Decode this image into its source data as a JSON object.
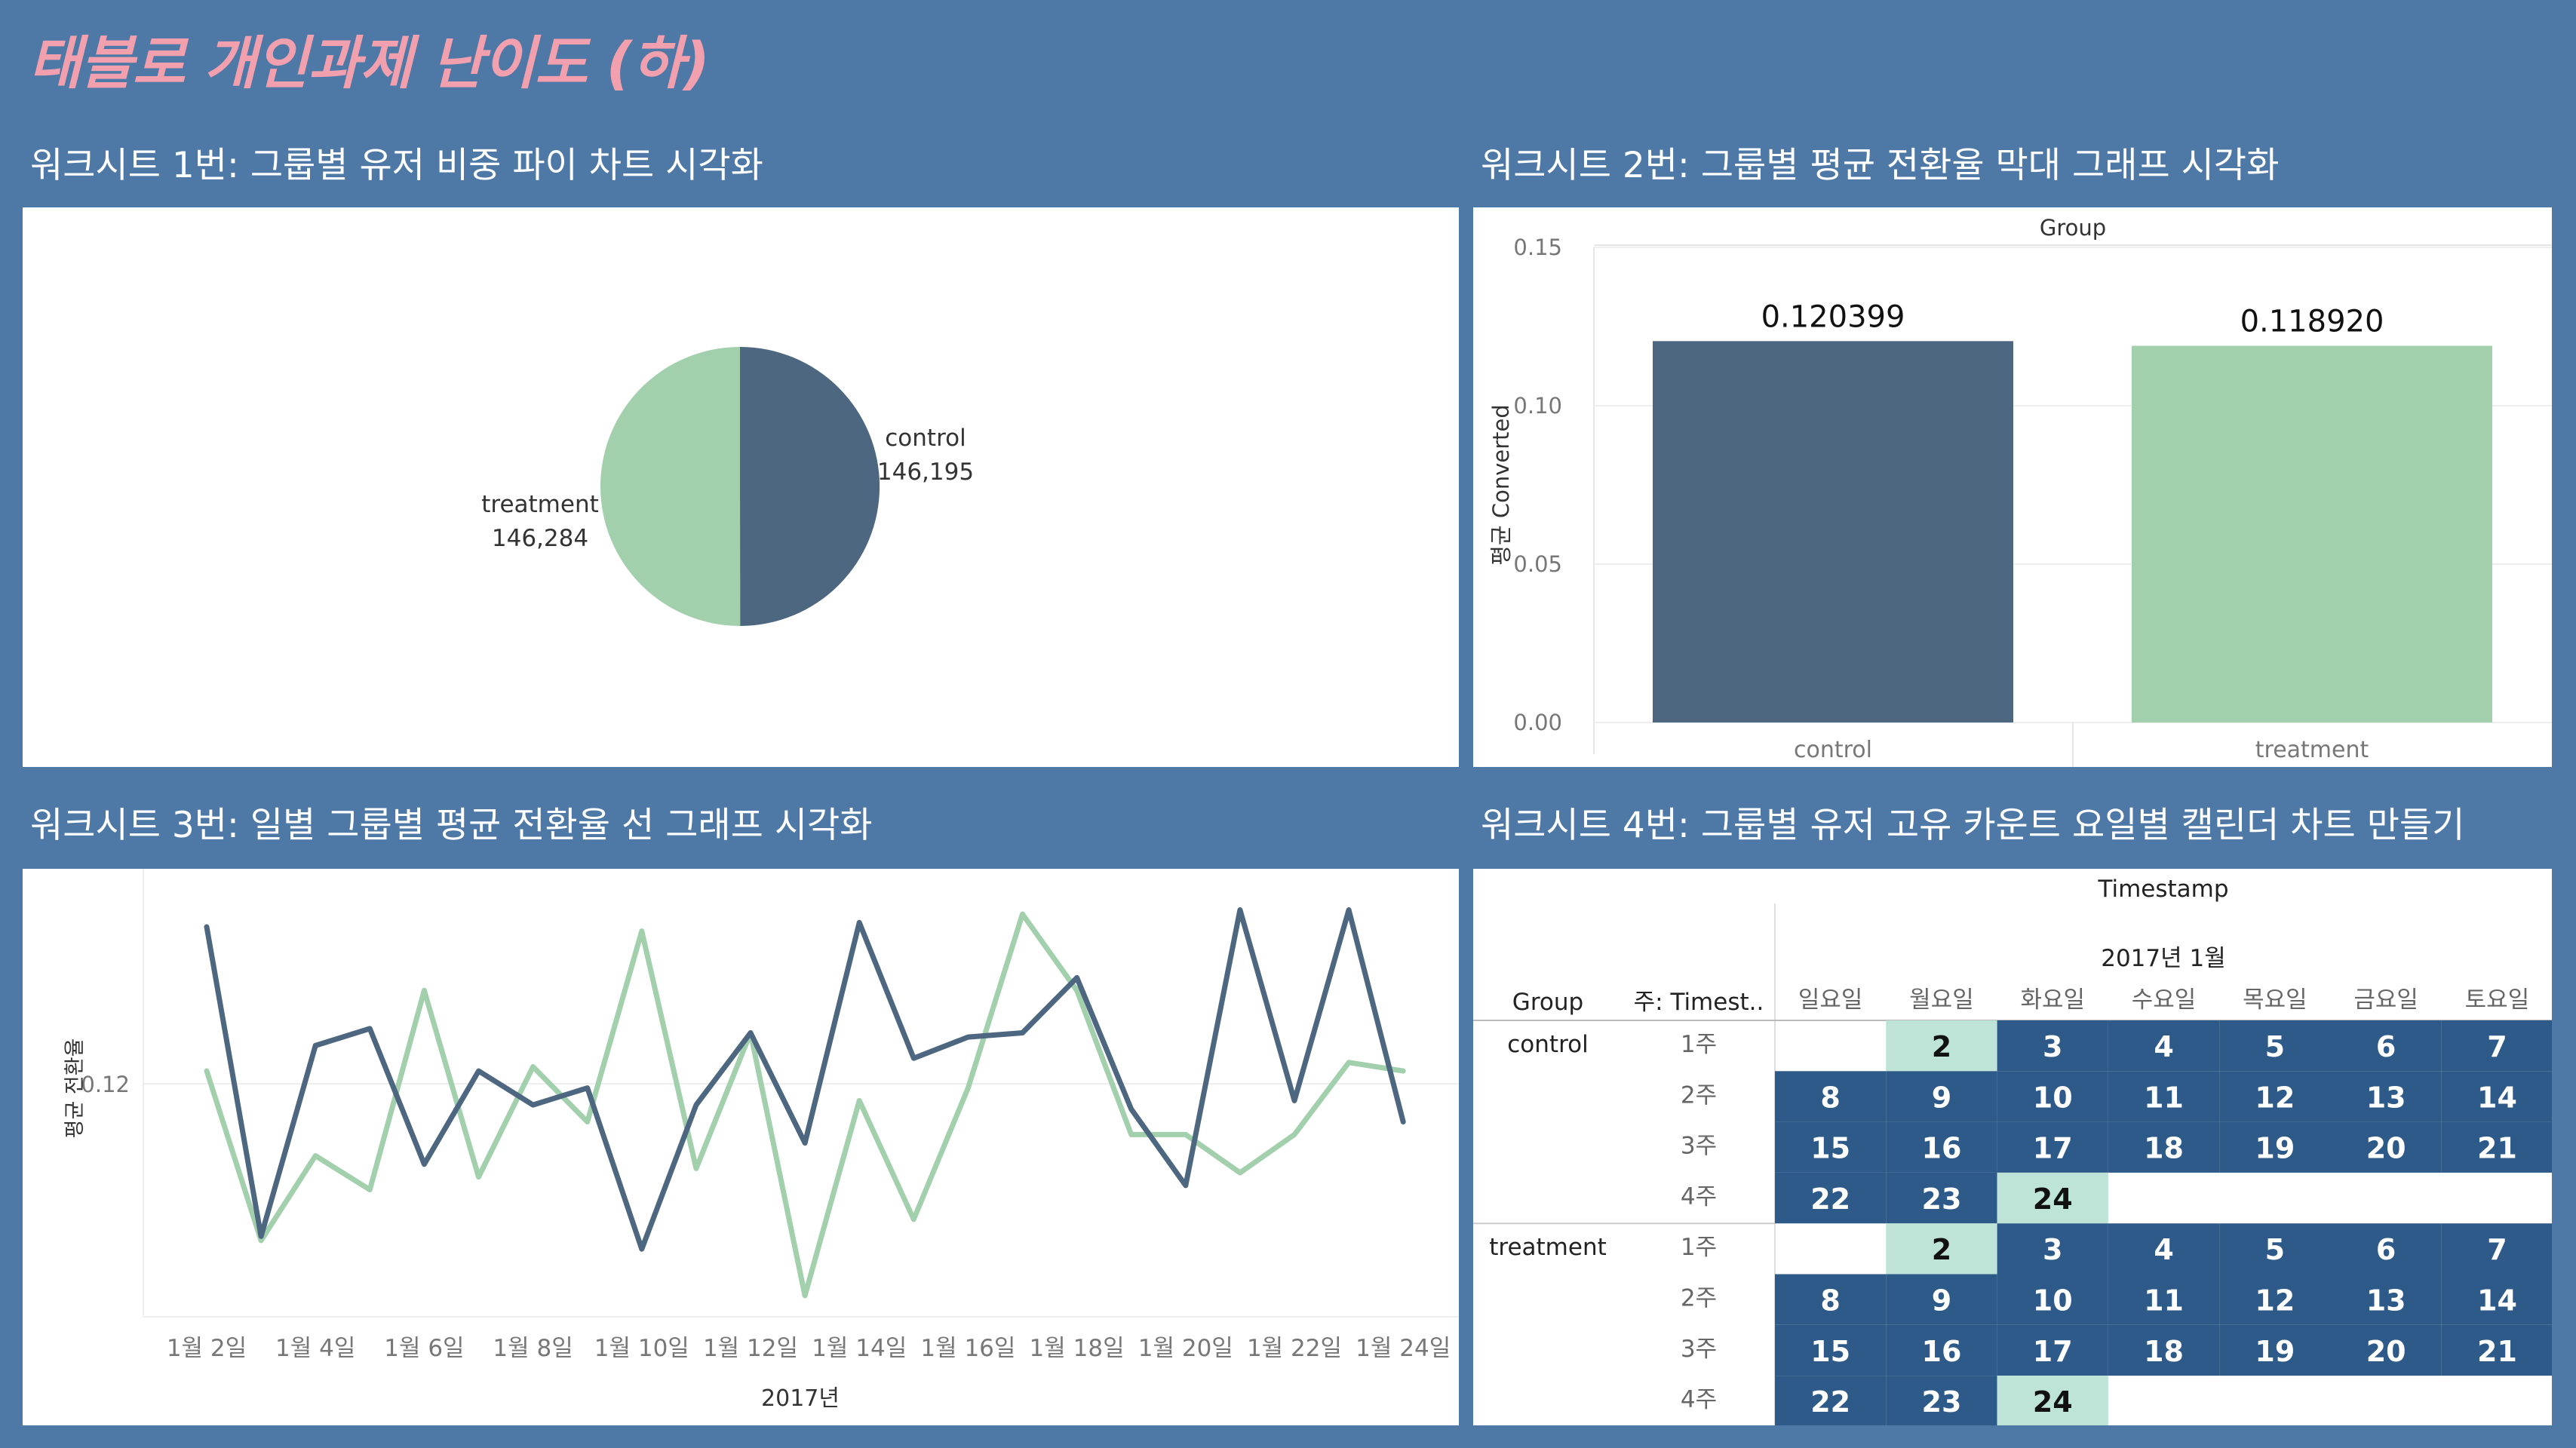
{
  "dashboard": {
    "title": "태블로 개인과제 난이도 (하)",
    "ws1_title": "워크시트 1번: 그룹별 유저 비중 파이 차트 시각화",
    "ws2_title": "워크시트 2번: 그룹별 평균 전환율 막대 그래프 시각화",
    "ws3_title": "워크시트 3번: 일별 그룹별 평균 전환율 선 그래프 시각화",
    "ws4_title": "워크시트 4번: 그룹별 유저 고유 카운트 요일별 캘린더 차트 만들기"
  },
  "colors": {
    "background": "#4e78a6",
    "title_pink": "#f3a0ae",
    "control": "#4e6781",
    "treatment": "#a2cfac",
    "calendar_dark": "#2d5a88",
    "calendar_light": "#bde4d6"
  },
  "chart_data": [
    {
      "type": "pie",
      "slices": [
        {
          "name": "control",
          "label": "146,195",
          "value": 146195
        },
        {
          "name": "treatment",
          "label": "146,284",
          "value": 146284
        }
      ]
    },
    {
      "type": "bar",
      "header": "Group",
      "categories": [
        "control",
        "treatment"
      ],
      "values": [
        0.120399,
        0.11892
      ],
      "value_labels": [
        "0.120399",
        "0.118920"
      ],
      "ylabel": "평균 Converted",
      "ylim": [
        0,
        0.15
      ],
      "yticks": [
        "0.00",
        "0.05",
        "0.10",
        "0.15"
      ]
    },
    {
      "type": "line",
      "xlabel": "2017년",
      "ylabel": "평균 전환율",
      "x_ticks": [
        "1월 2일",
        "1월 4일",
        "1월 6일",
        "1월 8일",
        "1월 10일",
        "1월 12일",
        "1월 14일",
        "1월 16일",
        "1월 18일",
        "1월 20일",
        "1월 22일",
        "1월 24일"
      ],
      "y_tick": "0.12",
      "x": [
        "1월 2일",
        "1월 3일",
        "1월 4일",
        "1월 5일",
        "1월 6일",
        "1월 7일",
        "1월 8일",
        "1월 9일",
        "1월 10일",
        "1월 11일",
        "1월 12일",
        "1월 13일",
        "1월 14일",
        "1월 15일",
        "1월 16일",
        "1월 17일",
        "1월 18일",
        "1월 19일",
        "1월 20일",
        "1월 21일",
        "1월 22일",
        "1월 23일",
        "1月 24일"
      ],
      "series": [
        {
          "name": "control",
          "values": [
            0.1237,
            0.1164,
            0.1209,
            0.1213,
            0.1181,
            0.1203,
            0.1195,
            0.1199,
            0.1161,
            0.1195,
            0.1212,
            0.1186,
            0.1238,
            0.1206,
            0.1211,
            0.1212,
            0.1225,
            0.1194,
            0.1176,
            0.1241,
            0.1196,
            0.1241,
            0.1191
          ]
        },
        {
          "name": "treatment",
          "values": [
            0.1203,
            0.1163,
            0.1183,
            0.1175,
            0.1222,
            0.1178,
            0.1204,
            0.1191,
            0.1236,
            0.118,
            0.1212,
            0.115,
            0.1196,
            0.1168,
            0.1199,
            0.124,
            0.1222,
            0.1188,
            0.1188,
            0.1179,
            0.1188,
            0.1205,
            0.1203
          ]
        }
      ]
    },
    {
      "type": "table",
      "header": "Timestamp",
      "month": "2017년 1월",
      "col_group": "Group",
      "col_week": "주: Timest..",
      "weekdays": [
        "일요일",
        "월요일",
        "화요일",
        "수요일",
        "목요일",
        "금요일",
        "토요일"
      ],
      "groups": [
        {
          "name": "control",
          "weeks": [
            {
              "label": "1주",
              "days": [
                "",
                "2",
                "3",
                "4",
                "5",
                "6",
                "7"
              ]
            },
            {
              "label": "2주",
              "days": [
                "8",
                "9",
                "10",
                "11",
                "12",
                "13",
                "14"
              ]
            },
            {
              "label": "3주",
              "days": [
                "15",
                "16",
                "17",
                "18",
                "19",
                "20",
                "21"
              ]
            },
            {
              "label": "4주",
              "days": [
                "22",
                "23",
                "24",
                "",
                "",
                "",
                ""
              ]
            }
          ]
        },
        {
          "name": "treatment",
          "weeks": [
            {
              "label": "1주",
              "days": [
                "",
                "2",
                "3",
                "4",
                "5",
                "6",
                "7"
              ]
            },
            {
              "label": "2주",
              "days": [
                "8",
                "9",
                "10",
                "11",
                "12",
                "13",
                "14"
              ]
            },
            {
              "label": "3주",
              "days": [
                "15",
                "16",
                "17",
                "18",
                "19",
                "20",
                "21"
              ]
            },
            {
              "label": "4주",
              "days": [
                "22",
                "23",
                "24",
                "",
                "",
                "",
                ""
              ]
            }
          ]
        }
      ],
      "light_days": [
        "2",
        "24"
      ]
    }
  ]
}
